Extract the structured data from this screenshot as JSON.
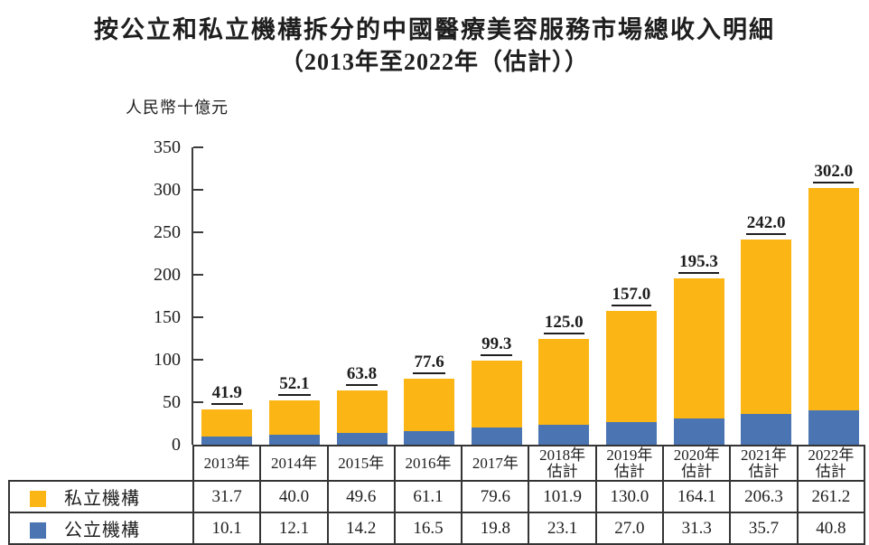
{
  "chart_data": {
    "type": "bar",
    "stacked": true,
    "title": "按公立和私立機構拆分的中國醫療美容服務市場總收入明細",
    "subtitle": "（2013年至2022年（估計））",
    "unit_label": "人民幣十億元",
    "ylim": [
      0,
      350
    ],
    "yticks": [
      "0",
      "50",
      "100",
      "150",
      "200",
      "250",
      "300",
      "350"
    ],
    "grid": false,
    "legend_position": "table-left",
    "categories": [
      "2013年",
      "2014年",
      "2015年",
      "2016年",
      "2017年",
      "2018年\n估計",
      "2019年\n估計",
      "2020年\n估計",
      "2021年\n估計",
      "2022年\n估計"
    ],
    "totals": [
      "41.9",
      "52.1",
      "63.8",
      "77.6",
      "99.3",
      "125.0",
      "157.0",
      "195.3",
      "242.0",
      "302.0"
    ],
    "series": [
      {
        "name": "私立機構",
        "color": "#FBB615",
        "values": [
          "31.7",
          "40.0",
          "49.6",
          "61.1",
          "79.6",
          "101.9",
          "130.0",
          "164.1",
          "206.3",
          "261.2"
        ]
      },
      {
        "name": "公立機構",
        "color": "#4A75B2",
        "values": [
          "10.1",
          "12.1",
          "14.2",
          "16.5",
          "19.8",
          "23.1",
          "27.0",
          "31.3",
          "35.7",
          "40.8"
        ]
      }
    ],
    "axis_color": "#3c3c3c"
  }
}
